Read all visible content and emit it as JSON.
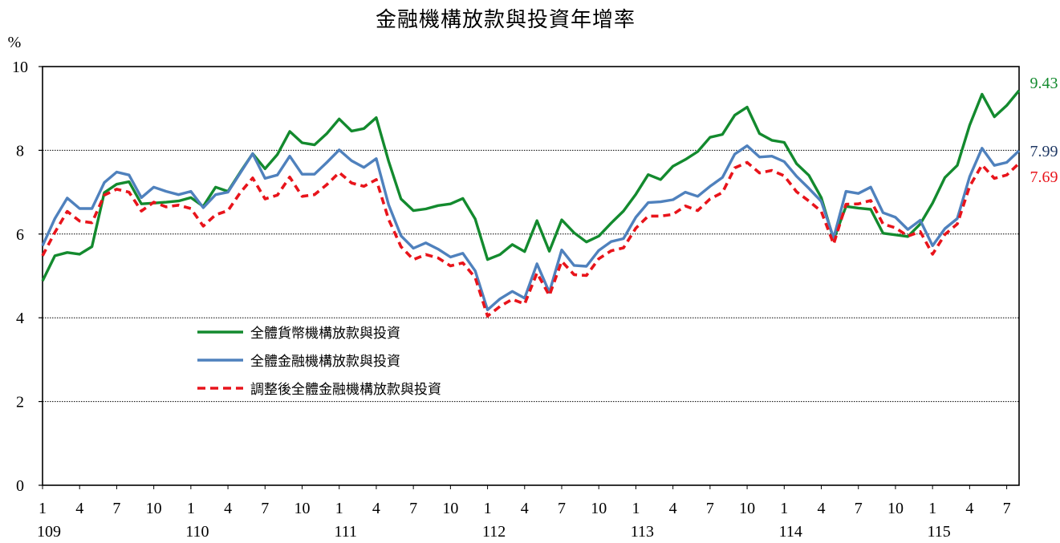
{
  "chart_data": {
    "type": "line",
    "title": "金融機構放款與投資年增率",
    "ylabel": "%",
    "ylim": [
      0,
      10
    ],
    "yticks": [
      0,
      2,
      4,
      6,
      8,
      10
    ],
    "grid": "horizontal dotted at 2,6,8",
    "legend_position": "lower-left inside plot",
    "x_month_ticks": [
      {
        "i": 0,
        "label": "1"
      },
      {
        "i": 3,
        "label": "4"
      },
      {
        "i": 6,
        "label": "7"
      },
      {
        "i": 9,
        "label": "10"
      },
      {
        "i": 12,
        "label": "1"
      },
      {
        "i": 15,
        "label": "4"
      },
      {
        "i": 18,
        "label": "7"
      },
      {
        "i": 21,
        "label": "10"
      },
      {
        "i": 24,
        "label": "1"
      },
      {
        "i": 27,
        "label": "4"
      },
      {
        "i": 30,
        "label": "7"
      },
      {
        "i": 33,
        "label": "10"
      },
      {
        "i": 36,
        "label": "1"
      },
      {
        "i": 39,
        "label": "4"
      },
      {
        "i": 42,
        "label": "7"
      },
      {
        "i": 45,
        "label": "10"
      },
      {
        "i": 48,
        "label": "1"
      },
      {
        "i": 51,
        "label": "4"
      },
      {
        "i": 54,
        "label": "7"
      },
      {
        "i": 57,
        "label": "10"
      },
      {
        "i": 60,
        "label": "1"
      },
      {
        "i": 63,
        "label": "4"
      },
      {
        "i": 66,
        "label": "7"
      },
      {
        "i": 69,
        "label": "10"
      },
      {
        "i": 72,
        "label": "1"
      },
      {
        "i": 75,
        "label": "4"
      },
      {
        "i": 78,
        "label": "7"
      }
    ],
    "x_year_labels": [
      {
        "i": 0,
        "label": "109"
      },
      {
        "i": 12,
        "label": "110"
      },
      {
        "i": 24,
        "label": "111"
      },
      {
        "i": 36,
        "label": "112"
      },
      {
        "i": 48,
        "label": "113"
      },
      {
        "i": 60,
        "label": "114"
      },
      {
        "i": 72,
        "label": "115"
      }
    ],
    "series": [
      {
        "name": "全體貨幣機構放款與投資",
        "color": "#138a2e",
        "style": "solid",
        "end_label": "9.43",
        "values": [
          4.88,
          5.48,
          5.56,
          5.52,
          5.7,
          6.99,
          7.19,
          7.25,
          6.72,
          6.74,
          6.76,
          6.79,
          6.87,
          6.66,
          7.12,
          7.02,
          7.48,
          7.92,
          7.56,
          7.9,
          8.45,
          8.18,
          8.13,
          8.4,
          8.75,
          8.46,
          8.52,
          8.78,
          7.74,
          6.84,
          6.56,
          6.6,
          6.68,
          6.72,
          6.85,
          6.36,
          5.39,
          5.51,
          5.75,
          5.58,
          6.32,
          5.59,
          6.34,
          6.03,
          5.81,
          5.95,
          6.26,
          6.55,
          6.95,
          7.42,
          7.3,
          7.62,
          7.78,
          7.97,
          8.31,
          8.38,
          8.84,
          9.03,
          8.4,
          8.24,
          8.19,
          7.68,
          7.4,
          6.87,
          5.87,
          6.66,
          6.62,
          6.59,
          6.02,
          5.98,
          5.94,
          6.24,
          6.74,
          7.35,
          7.64,
          8.6,
          9.34,
          8.8,
          9.07,
          9.43
        ]
      },
      {
        "name": "全體金融機構放款與投資",
        "color": "#4f81bd",
        "style": "solid",
        "end_label": "7.99",
        "end_label_color": "#1f3864",
        "values": [
          5.72,
          6.37,
          6.86,
          6.61,
          6.61,
          7.23,
          7.48,
          7.41,
          6.87,
          7.12,
          7.02,
          6.94,
          7.02,
          6.63,
          6.94,
          7.0,
          7.46,
          7.92,
          7.33,
          7.41,
          7.86,
          7.43,
          7.43,
          7.71,
          8.01,
          7.75,
          7.59,
          7.8,
          6.7,
          5.96,
          5.66,
          5.79,
          5.64,
          5.45,
          5.54,
          5.12,
          4.19,
          4.45,
          4.63,
          4.47,
          5.29,
          4.61,
          5.62,
          5.25,
          5.23,
          5.61,
          5.82,
          5.89,
          6.4,
          6.75,
          6.77,
          6.82,
          7.0,
          6.9,
          7.14,
          7.35,
          7.91,
          8.11,
          7.84,
          7.86,
          7.73,
          7.38,
          7.09,
          6.78,
          5.91,
          7.02,
          6.97,
          7.12,
          6.51,
          6.4,
          6.11,
          6.33,
          5.72,
          6.13,
          6.37,
          7.37,
          8.05,
          7.64,
          7.71,
          7.99
        ]
      },
      {
        "name": "調整後全體金融機構放款與投資",
        "color": "#e8141b",
        "style": "dashed",
        "end_label": "7.69",
        "values": [
          5.48,
          6.04,
          6.54,
          6.31,
          6.27,
          6.93,
          7.07,
          7.0,
          6.55,
          6.76,
          6.65,
          6.69,
          6.61,
          6.19,
          6.46,
          6.56,
          6.99,
          7.34,
          6.84,
          6.93,
          7.36,
          6.9,
          6.94,
          7.18,
          7.47,
          7.22,
          7.14,
          7.3,
          6.35,
          5.7,
          5.39,
          5.51,
          5.43,
          5.24,
          5.31,
          4.96,
          4.04,
          4.27,
          4.44,
          4.33,
          5.07,
          4.53,
          5.35,
          5.03,
          5.01,
          5.41,
          5.6,
          5.67,
          6.14,
          6.43,
          6.43,
          6.47,
          6.67,
          6.56,
          6.84,
          6.99,
          7.58,
          7.71,
          7.46,
          7.52,
          7.39,
          7.01,
          6.79,
          6.54,
          5.76,
          6.71,
          6.72,
          6.8,
          6.24,
          6.15,
          5.95,
          6.06,
          5.52,
          5.99,
          6.24,
          7.14,
          7.65,
          7.33,
          7.41,
          7.69
        ]
      }
    ]
  }
}
